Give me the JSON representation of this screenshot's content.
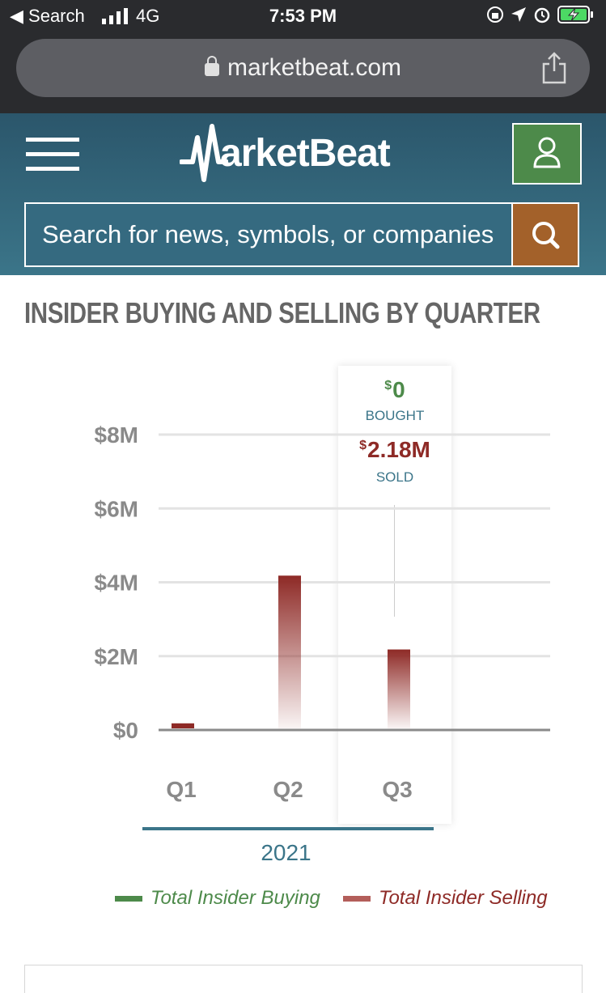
{
  "status_bar": {
    "back_label": "◀ Search",
    "network": "4G",
    "time": "7:53 PM"
  },
  "browser": {
    "url": "marketbeat.com"
  },
  "header": {
    "logo_text": "arketBeat",
    "search_placeholder": "Search for news, symbols, or companies"
  },
  "section": {
    "heading": "INSIDER BUYING AND SELLING BY QUARTER"
  },
  "tooltip": {
    "currency_symbol": "$",
    "bought_value": "0",
    "bought_label": "BOUGHT",
    "sold_value": "2.18M",
    "sold_label": "SOLD"
  },
  "chart_data": {
    "type": "bar",
    "categories": [
      "Q1",
      "Q2",
      "Q3"
    ],
    "group_label": "2021",
    "series": [
      {
        "name": "Total Insider Buying",
        "values": [
          0,
          0,
          0
        ],
        "color": "#4d8a4a"
      },
      {
        "name": "Total Insider Selling",
        "values": [
          0.18,
          4.18,
          2.18
        ],
        "color": "#8e2a26"
      }
    ],
    "y_ticks": [
      "$0",
      "$2M",
      "$4M",
      "$6M",
      "$8M"
    ],
    "ylim": [
      0,
      8
    ],
    "y_unit": "millions USD",
    "grid": true,
    "legend": "bottom",
    "highlighted_category": "Q3"
  },
  "colors": {
    "header_gradient_top": "#2b566b",
    "header_gradient_bottom": "#3b7589",
    "account_green": "#4d8a4a",
    "search_orange": "#a3612a",
    "sell_red": "#8e2a26",
    "buy_green": "#4d8a4a"
  }
}
